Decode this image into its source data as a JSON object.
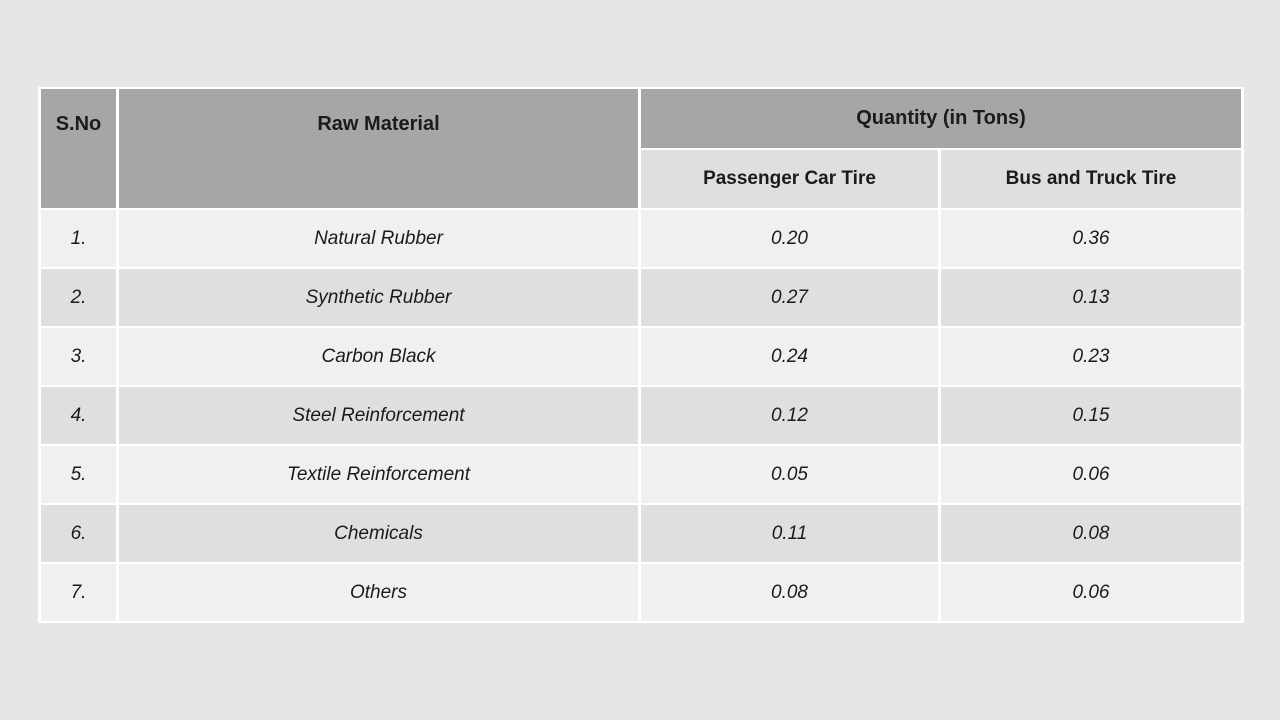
{
  "colors": {
    "page_background": "#e6e6e6",
    "header_band": "#a6a6a6",
    "subheader_band": "#dfdfdf",
    "row_odd": "#f0f0f0",
    "row_even": "#dfdfdf",
    "cell_separator": "#ffffff",
    "text": "#1b1b1b"
  },
  "chart_data": {
    "type": "table",
    "title": "Quantity (in Tons)",
    "columns": {
      "sno": "S.No",
      "material": "Raw Material",
      "quantity_group": "Quantity (in Tons)",
      "passenger": "Passenger Car Tire",
      "bus_truck": "Bus and Truck Tire"
    },
    "categories": [
      "Natural Rubber",
      "Synthetic Rubber",
      "Carbon Black",
      "Steel Reinforcement",
      "Textile Reinforcement",
      "Chemicals",
      "Others"
    ],
    "series": [
      {
        "name": "Passenger Car Tire",
        "values": [
          0.2,
          0.27,
          0.24,
          0.12,
          0.05,
          0.11,
          0.08
        ]
      },
      {
        "name": "Bus and Truck Tire",
        "values": [
          0.36,
          0.13,
          0.23,
          0.15,
          0.06,
          0.08,
          0.06
        ]
      }
    ],
    "rows": [
      {
        "sno": "1.",
        "material": "Natural Rubber",
        "passenger": "0.20",
        "bus_truck": "0.36"
      },
      {
        "sno": "2.",
        "material": "Synthetic Rubber",
        "passenger": "0.27",
        "bus_truck": "0.13"
      },
      {
        "sno": "3.",
        "material": "Carbon Black",
        "passenger": "0.24",
        "bus_truck": "0.23"
      },
      {
        "sno": "4.",
        "material": "Steel Reinforcement",
        "passenger": "0.12",
        "bus_truck": "0.15"
      },
      {
        "sno": "5.",
        "material": "Textile Reinforcement",
        "passenger": "0.05",
        "bus_truck": "0.06"
      },
      {
        "sno": "6.",
        "material": "Chemicals",
        "passenger": "0.11",
        "bus_truck": "0.08"
      },
      {
        "sno": "7.",
        "material": "Others",
        "passenger": "0.08",
        "bus_truck": "0.06"
      }
    ]
  }
}
